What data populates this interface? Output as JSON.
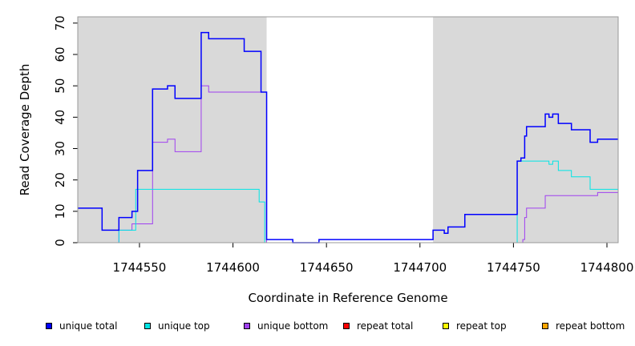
{
  "chart_data": {
    "type": "line",
    "xlabel": "Coordinate in Reference Genome",
    "ylabel": "Read Coverage Depth",
    "xlim": [
      1744517,
      1744806
    ],
    "ylim": [
      0,
      72
    ],
    "xticks": [
      1744550,
      1744600,
      1744650,
      1744700,
      1744750,
      1744800
    ],
    "yticks": [
      0,
      10,
      20,
      30,
      40,
      50,
      60,
      70
    ],
    "shaded_regions": [
      [
        1744517,
        1744618
      ],
      [
        1744707,
        1744806
      ]
    ],
    "shade_color": "#d9d9d9",
    "series": [
      {
        "name": "unique total",
        "color": "#0000ff",
        "x": [
          1744517,
          1744530,
          1744539,
          1744546,
          1744549,
          1744557,
          1744565,
          1744569,
          1744583,
          1744587,
          1744606,
          1744615,
          1744618,
          1744632,
          1744646,
          1744707,
          1744713,
          1744715,
          1744724,
          1744752,
          1744754,
          1744756,
          1744757,
          1744767,
          1744769,
          1744771,
          1744774,
          1744781,
          1744791,
          1744795,
          1744806
        ],
        "y": [
          11,
          4,
          8,
          10,
          23,
          49,
          50,
          46,
          67,
          65,
          61,
          48,
          1,
          0,
          1,
          4,
          3,
          5,
          9,
          26,
          27,
          34,
          37,
          41,
          40,
          41,
          38,
          36,
          32,
          33,
          33
        ]
      },
      {
        "name": "unique top",
        "color": "#00e5e5",
        "x": [
          1744517,
          1744539,
          1744547,
          1744548,
          1744606,
          1744614,
          1744617,
          1744752,
          1744767,
          1744769,
          1744771,
          1744774,
          1744781,
          1744791,
          1744806
        ],
        "y": [
          0,
          4,
          4,
          17,
          17,
          13,
          0,
          26,
          26,
          25,
          26,
          23,
          21,
          17,
          17
        ],
        "thin": true
      },
      {
        "name": "unique bottom",
        "color": "#a040f0",
        "x": [
          1744517,
          1744539,
          1744546,
          1744557,
          1744565,
          1744569,
          1744583,
          1744587,
          1744615,
          1744618,
          1744755,
          1744756,
          1744757,
          1744767,
          1744795,
          1744806
        ],
        "y": [
          0,
          4,
          6,
          32,
          33,
          29,
          50,
          48,
          48,
          0,
          1,
          8,
          11,
          15,
          16,
          16
        ],
        "thin": true
      },
      {
        "name": "repeat total",
        "color": "#ff0000",
        "x": [
          1744517,
          1744806
        ],
        "y": [
          0,
          0
        ],
        "thin": true
      },
      {
        "name": "repeat top",
        "color": "#ffff00",
        "x": [
          1744517,
          1744806
        ],
        "y": [
          0,
          0
        ],
        "thin": true
      },
      {
        "name": "repeat bottom",
        "color": "#ffa500",
        "x": [
          1744517,
          1744806
        ],
        "y": [
          0,
          0
        ],
        "thin": true
      }
    ]
  }
}
